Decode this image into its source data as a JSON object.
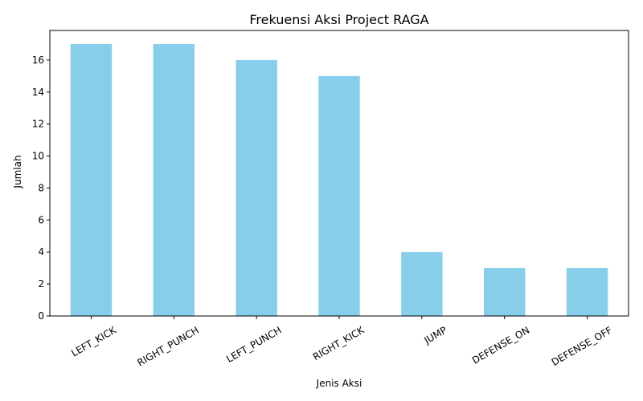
{
  "chart_data": {
    "type": "bar",
    "title": "Frekuensi Aksi Project RAGA",
    "xlabel": "Jenis Aksi",
    "ylabel": "Jumlah",
    "categories": [
      "LEFT_KICK",
      "RIGHT_PUNCH",
      "LEFT_PUNCH",
      "RIGHT_KICK",
      "JUMP",
      "DEFENSE_ON",
      "DEFENSE_OFF"
    ],
    "values": [
      17,
      17,
      16,
      15,
      4,
      3,
      3
    ],
    "ylim": [
      0,
      17.85
    ],
    "yticks": [
      0,
      2,
      4,
      6,
      8,
      10,
      12,
      14,
      16
    ],
    "bar_color": "#87ceeb",
    "grid": false,
    "legend": "none"
  }
}
